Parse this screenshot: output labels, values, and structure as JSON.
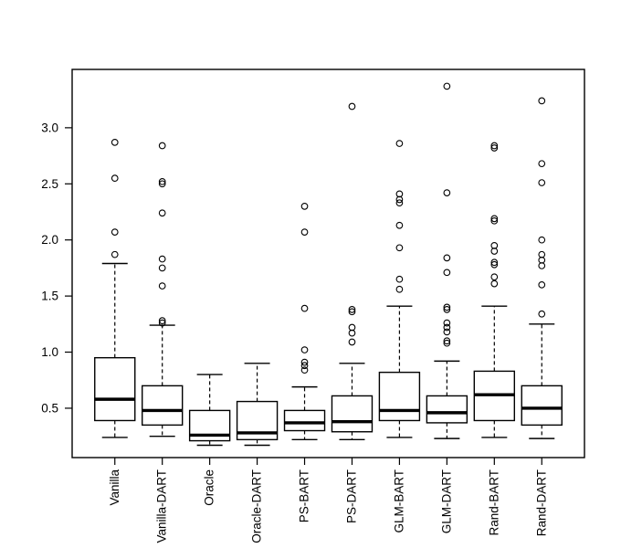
{
  "chart_data": {
    "type": "boxplot",
    "title": "",
    "xlabel": "",
    "ylabel": "",
    "grid": false,
    "legend": "none",
    "ylim": [
      0.06,
      3.52
    ],
    "yticks": [
      0.5,
      1.0,
      1.5,
      2.0,
      2.5,
      3.0
    ],
    "ytick_labels": [
      "0.5",
      "1.0",
      "1.5",
      "2.0",
      "2.5",
      "3.0"
    ],
    "categories": [
      "Vanilla",
      "Vanilla-DART",
      "Oracle",
      "Oracle-DART",
      "PS-BART",
      "PS-DART",
      "GLM-BART",
      "GLM-DART",
      "Rand-BART",
      "Rand-DART"
    ],
    "series": [
      {
        "name": "Vanilla",
        "whisker_low": 0.24,
        "q1": 0.39,
        "median": 0.58,
        "q3": 0.95,
        "whisker_high": 1.79,
        "outliers": [
          1.87,
          2.07,
          2.55,
          2.87
        ]
      },
      {
        "name": "Vanilla-DART",
        "whisker_low": 0.25,
        "q1": 0.35,
        "median": 0.48,
        "q3": 0.7,
        "whisker_high": 1.24,
        "outliers": [
          1.26,
          1.28,
          1.59,
          1.75,
          1.83,
          2.24,
          2.5,
          2.52,
          2.84
        ]
      },
      {
        "name": "Oracle",
        "whisker_low": 0.17,
        "q1": 0.21,
        "median": 0.26,
        "q3": 0.48,
        "whisker_high": 0.8,
        "outliers": []
      },
      {
        "name": "Oracle-DART",
        "whisker_low": 0.17,
        "q1": 0.22,
        "median": 0.28,
        "q3": 0.56,
        "whisker_high": 0.9,
        "outliers": []
      },
      {
        "name": "PS-BART",
        "whisker_low": 0.22,
        "q1": 0.3,
        "median": 0.37,
        "q3": 0.48,
        "whisker_high": 0.69,
        "outliers": [
          0.84,
          0.88,
          0.91,
          1.02,
          1.39,
          2.07,
          2.3
        ]
      },
      {
        "name": "PS-DART",
        "whisker_low": 0.22,
        "q1": 0.29,
        "median": 0.38,
        "q3": 0.61,
        "whisker_high": 0.9,
        "outliers": [
          1.09,
          1.17,
          1.22,
          1.36,
          1.38,
          3.19
        ]
      },
      {
        "name": "GLM-BART",
        "whisker_low": 0.24,
        "q1": 0.39,
        "median": 0.48,
        "q3": 0.82,
        "whisker_high": 1.41,
        "outliers": [
          1.56,
          1.65,
          1.93,
          2.13,
          2.33,
          2.36,
          2.41,
          2.86
        ]
      },
      {
        "name": "GLM-DART",
        "whisker_low": 0.23,
        "q1": 0.37,
        "median": 0.46,
        "q3": 0.61,
        "whisker_high": 0.92,
        "outliers": [
          1.08,
          1.1,
          1.18,
          1.22,
          1.26,
          1.38,
          1.4,
          1.71,
          1.84,
          2.42,
          3.37
        ]
      },
      {
        "name": "Rand-BART",
        "whisker_low": 0.24,
        "q1": 0.39,
        "median": 0.62,
        "q3": 0.83,
        "whisker_high": 1.41,
        "outliers": [
          1.61,
          1.67,
          1.78,
          1.8,
          1.9,
          1.95,
          2.17,
          2.19,
          2.82,
          2.84
        ]
      },
      {
        "name": "Rand-DART",
        "whisker_low": 0.23,
        "q1": 0.35,
        "median": 0.5,
        "q3": 0.7,
        "whisker_high": 1.25,
        "outliers": [
          1.34,
          1.6,
          1.77,
          1.82,
          1.87,
          2.0,
          2.51,
          2.68,
          3.24
        ]
      }
    ],
    "colors": {
      "foreground": "#000000",
      "background": "#ffffff"
    }
  }
}
